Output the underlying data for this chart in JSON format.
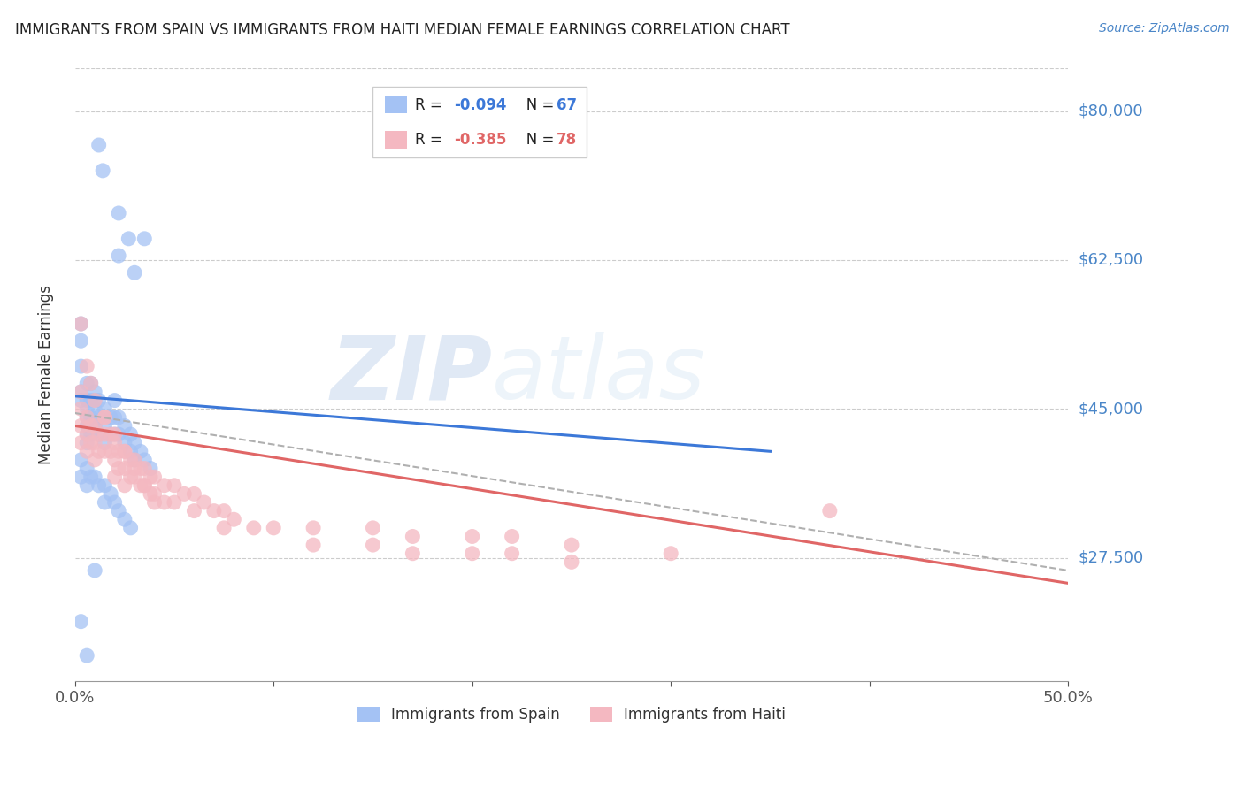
{
  "title": "IMMIGRANTS FROM SPAIN VS IMMIGRANTS FROM HAITI MEDIAN FEMALE EARNINGS CORRELATION CHART",
  "source": "Source: ZipAtlas.com",
  "ylabel": "Median Female Earnings",
  "xlim": [
    0.0,
    0.5
  ],
  "ylim": [
    13000,
    85000
  ],
  "yticks": [
    27500,
    45000,
    62500,
    80000
  ],
  "ytick_labels": [
    "$27,500",
    "$45,000",
    "$62,500",
    "$80,000"
  ],
  "xticks": [
    0.0,
    0.1,
    0.2,
    0.3,
    0.4,
    0.5
  ],
  "xtick_labels": [
    "0.0%",
    "",
    "",
    "",
    "",
    "50.0%"
  ],
  "color_spain": "#a4c2f4",
  "color_haiti": "#f4b8c1",
  "color_spain_line": "#3c78d8",
  "color_haiti_line": "#e06666",
  "color_trend_dashed": "#b0b0b0",
  "background_color": "#ffffff",
  "grid_color": "#cccccc",
  "spain_x": [
    0.012,
    0.014,
    0.022,
    0.027,
    0.035,
    0.022,
    0.03,
    0.003,
    0.003,
    0.003,
    0.003,
    0.003,
    0.006,
    0.006,
    0.006,
    0.006,
    0.006,
    0.006,
    0.006,
    0.008,
    0.008,
    0.008,
    0.008,
    0.01,
    0.01,
    0.01,
    0.01,
    0.012,
    0.012,
    0.012,
    0.015,
    0.015,
    0.015,
    0.018,
    0.018,
    0.02,
    0.02,
    0.02,
    0.022,
    0.022,
    0.025,
    0.025,
    0.028,
    0.028,
    0.03,
    0.03,
    0.033,
    0.035,
    0.038,
    0.003,
    0.003,
    0.006,
    0.006,
    0.008,
    0.01,
    0.012,
    0.015,
    0.015,
    0.018,
    0.02,
    0.022,
    0.025,
    0.028,
    0.003,
    0.006,
    0.01
  ],
  "spain_y": [
    76000,
    73000,
    68000,
    65000,
    65000,
    63000,
    61000,
    55000,
    53000,
    50000,
    47000,
    46000,
    48000,
    46000,
    45000,
    44000,
    43000,
    42000,
    41000,
    48000,
    46000,
    44000,
    42000,
    47000,
    46000,
    45000,
    43000,
    46000,
    44000,
    42000,
    45000,
    43000,
    41000,
    44000,
    42000,
    46000,
    44000,
    42000,
    44000,
    42000,
    43000,
    41000,
    42000,
    40000,
    41000,
    39000,
    40000,
    39000,
    38000,
    39000,
    37000,
    38000,
    36000,
    37000,
    37000,
    36000,
    36000,
    34000,
    35000,
    34000,
    33000,
    32000,
    31000,
    20000,
    16000,
    26000
  ],
  "haiti_x": [
    0.003,
    0.003,
    0.003,
    0.003,
    0.006,
    0.006,
    0.006,
    0.008,
    0.008,
    0.01,
    0.01,
    0.01,
    0.012,
    0.012,
    0.015,
    0.015,
    0.015,
    0.018,
    0.018,
    0.02,
    0.02,
    0.02,
    0.022,
    0.022,
    0.025,
    0.025,
    0.025,
    0.028,
    0.028,
    0.03,
    0.03,
    0.033,
    0.033,
    0.035,
    0.035,
    0.038,
    0.038,
    0.04,
    0.04,
    0.045,
    0.045,
    0.05,
    0.05,
    0.055,
    0.06,
    0.06,
    0.065,
    0.07,
    0.075,
    0.075,
    0.08,
    0.09,
    0.1,
    0.12,
    0.12,
    0.15,
    0.15,
    0.17,
    0.17,
    0.2,
    0.2,
    0.22,
    0.22,
    0.25,
    0.25,
    0.3,
    0.38,
    0.003,
    0.006,
    0.008,
    0.01,
    0.015,
    0.02,
    0.025,
    0.03,
    0.035,
    0.04
  ],
  "haiti_y": [
    47000,
    45000,
    43000,
    41000,
    44000,
    42000,
    40000,
    43000,
    41000,
    43000,
    41000,
    39000,
    42000,
    40000,
    44000,
    42000,
    40000,
    42000,
    40000,
    41000,
    39000,
    37000,
    40000,
    38000,
    40000,
    38000,
    36000,
    39000,
    37000,
    39000,
    37000,
    38000,
    36000,
    38000,
    36000,
    37000,
    35000,
    37000,
    35000,
    36000,
    34000,
    36000,
    34000,
    35000,
    35000,
    33000,
    34000,
    33000,
    33000,
    31000,
    32000,
    31000,
    31000,
    31000,
    29000,
    31000,
    29000,
    30000,
    28000,
    30000,
    28000,
    30000,
    28000,
    29000,
    27000,
    28000,
    33000,
    55000,
    50000,
    48000,
    46000,
    44000,
    42000,
    40000,
    38000,
    36000,
    34000
  ],
  "spain_trend_x": [
    0.0,
    0.35
  ],
  "spain_trend_y": [
    46500,
    40000
  ],
  "haiti_trend_x": [
    0.0,
    0.5
  ],
  "haiti_trend_y": [
    43000,
    24500
  ],
  "dashed_trend_x": [
    0.0,
    0.5
  ],
  "dashed_trend_y": [
    44500,
    26000
  ]
}
